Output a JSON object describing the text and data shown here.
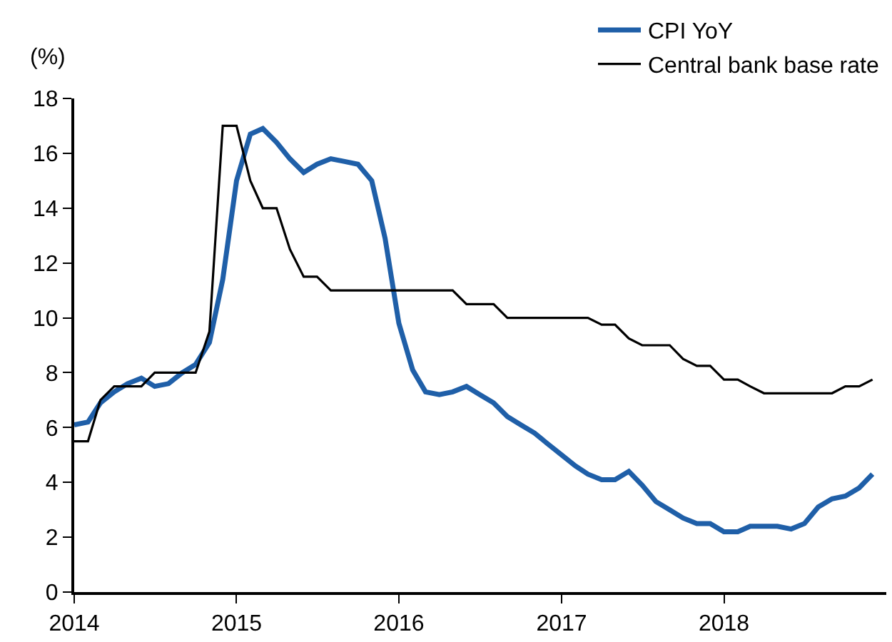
{
  "chart_data": {
    "type": "line",
    "ylabel": "(%)",
    "x": [
      "2014-01",
      "2014-02",
      "2014-03",
      "2014-04",
      "2014-05",
      "2014-06",
      "2014-07",
      "2014-08",
      "2014-09",
      "2014-10",
      "2014-11",
      "2014-12",
      "2015-01",
      "2015-02",
      "2015-03",
      "2015-04",
      "2015-05",
      "2015-06",
      "2015-07",
      "2015-08",
      "2015-09",
      "2015-10",
      "2015-11",
      "2015-12",
      "2016-01",
      "2016-02",
      "2016-03",
      "2016-04",
      "2016-05",
      "2016-06",
      "2016-07",
      "2016-08",
      "2016-09",
      "2016-10",
      "2016-11",
      "2016-12",
      "2017-01",
      "2017-02",
      "2017-03",
      "2017-04",
      "2017-05",
      "2017-06",
      "2017-07",
      "2017-08",
      "2017-09",
      "2017-10",
      "2017-11",
      "2017-12",
      "2018-01",
      "2018-02",
      "2018-03",
      "2018-04",
      "2018-05",
      "2018-06",
      "2018-07",
      "2018-08",
      "2018-09",
      "2018-10",
      "2018-11",
      "2018-12"
    ],
    "series": [
      {
        "name": "CPI YoY",
        "color": "#1f5fa8",
        "values": [
          6.1,
          6.2,
          6.9,
          7.3,
          7.6,
          7.8,
          7.5,
          7.6,
          8.0,
          8.3,
          9.1,
          11.4,
          15.0,
          16.7,
          16.9,
          16.4,
          15.8,
          15.3,
          15.6,
          15.8,
          15.7,
          15.6,
          15.0,
          12.9,
          9.8,
          8.1,
          7.3,
          7.2,
          7.3,
          7.5,
          7.2,
          6.9,
          6.4,
          6.1,
          5.8,
          5.4,
          5.0,
          4.6,
          4.3,
          4.1,
          4.1,
          4.4,
          3.9,
          3.3,
          3.0,
          2.7,
          2.5,
          2.5,
          2.2,
          2.2,
          2.4,
          2.4,
          2.4,
          2.3,
          2.5,
          3.1,
          3.4,
          3.5,
          3.8,
          4.3
        ]
      },
      {
        "name": "Central bank base rate",
        "color": "#000000",
        "values": [
          5.5,
          5.5,
          7.0,
          7.5,
          7.5,
          7.5,
          8.0,
          8.0,
          8.0,
          8.0,
          9.5,
          17.0,
          17.0,
          15.0,
          14.0,
          14.0,
          12.5,
          11.5,
          11.5,
          11.0,
          11.0,
          11.0,
          11.0,
          11.0,
          11.0,
          11.0,
          11.0,
          11.0,
          11.0,
          10.5,
          10.5,
          10.5,
          10.0,
          10.0,
          10.0,
          10.0,
          10.0,
          10.0,
          10.0,
          9.75,
          9.75,
          9.25,
          9.0,
          9.0,
          9.0,
          8.5,
          8.25,
          8.25,
          7.75,
          7.75,
          7.5,
          7.25,
          7.25,
          7.25,
          7.25,
          7.25,
          7.25,
          7.5,
          7.5,
          7.75
        ]
      }
    ],
    "xlim": [
      "2014-01",
      "2019-01"
    ],
    "xticks": [
      {
        "value": "2014-01",
        "label": "2014"
      },
      {
        "value": "2015-01",
        "label": "2015"
      },
      {
        "value": "2016-01",
        "label": "2016"
      },
      {
        "value": "2017-01",
        "label": "2017"
      },
      {
        "value": "2018-01",
        "label": "2018"
      }
    ],
    "ylim": [
      0,
      18
    ],
    "yticks": [
      0,
      2,
      4,
      6,
      8,
      10,
      12,
      14,
      16,
      18
    ],
    "legend": "top right",
    "marker": "none",
    "line_style": "solid"
  }
}
